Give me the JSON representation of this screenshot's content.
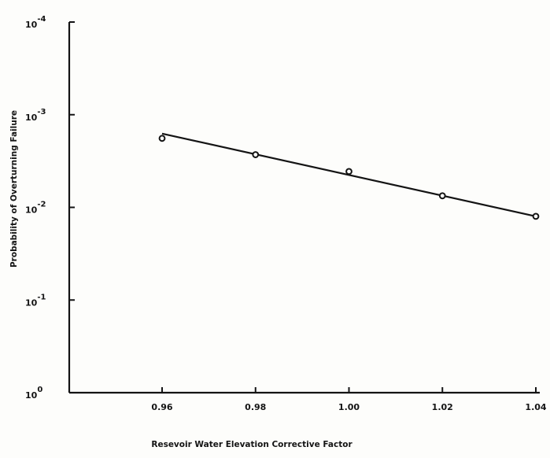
{
  "chart_data": {
    "type": "scatter",
    "title": "",
    "xlabel": "Resevoir Water Elevation Corrective Factor",
    "ylabel": "Probability of Overturning Failure",
    "x_ticks": [
      "0.96",
      "0.98",
      "1.00",
      "1.02",
      "1.04"
    ],
    "y_scale": "log",
    "y_ticks": [
      {
        "value": 0.0001,
        "base": "10",
        "exponent": "-4"
      },
      {
        "value": 0.001,
        "base": "10",
        "exponent": "-3"
      },
      {
        "value": 0.01,
        "base": "10",
        "exponent": "-2"
      },
      {
        "value": 0.1,
        "base": "10",
        "exponent": "-1"
      },
      {
        "value": 1,
        "base": "10",
        "exponent": "0"
      }
    ],
    "y_direction": "decreasing upward",
    "xlim": [
      0.94,
      1.04
    ],
    "ylim": [
      1,
      0.0001
    ],
    "grid": false,
    "series": [
      {
        "type": "scatter",
        "x": [
          0.96,
          0.98,
          1.0,
          1.02,
          1.04
        ],
        "y": [
          0.0018,
          0.0027,
          0.0041,
          0.0075,
          0.0125
        ]
      },
      {
        "type": "line",
        "x": [
          0.96,
          1.04
        ],
        "y": [
          0.0016,
          0.0125
        ]
      }
    ]
  }
}
